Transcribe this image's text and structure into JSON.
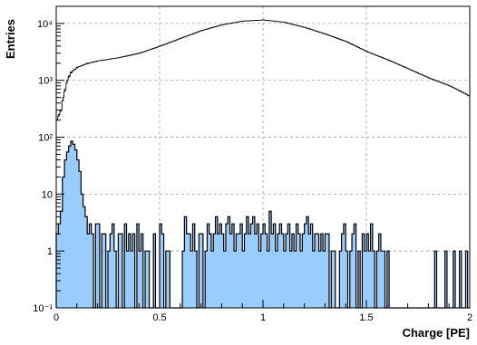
{
  "chart_data": {
    "type": "histogram",
    "xlabel": "Charge [PE]",
    "ylabel": "Entries",
    "xlim": [
      0,
      2
    ],
    "ylim": [
      0.1,
      20000
    ],
    "yscale": "log",
    "grid": true,
    "x_ticks": [
      {
        "value": 0,
        "label": "0"
      },
      {
        "value": 0.5,
        "label": "0.5"
      },
      {
        "value": 1,
        "label": "1"
      },
      {
        "value": 1.5,
        "label": "1.5"
      },
      {
        "value": 2,
        "label": "2"
      }
    ],
    "y_ticks": [
      {
        "value": 0.1,
        "label": "10⁻¹"
      },
      {
        "value": 1,
        "label": "1"
      },
      {
        "value": 10,
        "label": "10"
      },
      {
        "value": 100,
        "label": "10²"
      },
      {
        "value": 1000,
        "label": "10³"
      },
      {
        "value": 10000,
        "label": "10⁴"
      }
    ],
    "bin_width": 0.01,
    "series": [
      {
        "style": "step-outline",
        "color": "#000000",
        "bins": [
          [
            0.0,
            200
          ],
          [
            0.01,
            250
          ],
          [
            0.02,
            300
          ],
          [
            0.03,
            500
          ],
          [
            0.04,
            700
          ],
          [
            0.05,
            1000
          ],
          [
            0.06,
            1200
          ],
          [
            0.07,
            1400
          ],
          [
            0.08,
            1500
          ],
          [
            0.1,
            1700
          ],
          [
            0.15,
            2000
          ],
          [
            0.2,
            2200
          ],
          [
            0.3,
            2500
          ],
          [
            0.4,
            3000
          ],
          [
            0.5,
            4000
          ],
          [
            0.6,
            5500
          ],
          [
            0.7,
            7500
          ],
          [
            0.8,
            9500
          ],
          [
            0.9,
            11000
          ],
          [
            1.0,
            11500
          ],
          [
            1.1,
            10500
          ],
          [
            1.2,
            8500
          ],
          [
            1.3,
            6500
          ],
          [
            1.4,
            4800
          ],
          [
            1.5,
            3200
          ],
          [
            1.6,
            2300
          ],
          [
            1.7,
            1600
          ],
          [
            1.8,
            1100
          ],
          [
            1.9,
            800
          ],
          [
            1.95,
            650
          ],
          [
            2.0,
            520
          ]
        ]
      },
      {
        "style": "filled-step",
        "color": "#99ccff",
        "bins": [
          [
            0.0,
            2
          ],
          [
            0.01,
            3
          ],
          [
            0.02,
            5
          ],
          [
            0.03,
            20
          ],
          [
            0.04,
            40
          ],
          [
            0.05,
            55
          ],
          [
            0.06,
            70
          ],
          [
            0.07,
            85
          ],
          [
            0.08,
            75
          ],
          [
            0.09,
            60
          ],
          [
            0.1,
            40
          ],
          [
            0.11,
            25
          ],
          [
            0.12,
            10
          ],
          [
            0.13,
            6
          ],
          [
            0.14,
            4
          ],
          [
            0.15,
            2
          ],
          [
            0.16,
            3
          ],
          [
            0.17,
            2
          ],
          [
            0.18,
            0.1
          ],
          [
            0.19,
            3
          ],
          [
            0.2,
            3
          ],
          [
            0.21,
            0.1
          ],
          [
            0.22,
            2
          ],
          [
            0.23,
            2
          ],
          [
            0.24,
            0.1
          ],
          [
            0.25,
            1
          ],
          [
            0.26,
            2
          ],
          [
            0.27,
            3
          ],
          [
            0.28,
            1
          ],
          [
            0.29,
            0.1
          ],
          [
            0.3,
            2
          ],
          [
            0.31,
            2
          ],
          [
            0.32,
            0.1
          ],
          [
            0.33,
            3
          ],
          [
            0.34,
            1
          ],
          [
            0.35,
            2
          ],
          [
            0.36,
            1
          ],
          [
            0.37,
            2
          ],
          [
            0.38,
            0.1
          ],
          [
            0.39,
            3
          ],
          [
            0.4,
            1
          ],
          [
            0.41,
            2
          ],
          [
            0.42,
            0.1
          ],
          [
            0.43,
            1
          ],
          [
            0.44,
            1
          ],
          [
            0.45,
            0.1
          ],
          [
            0.46,
            0.1
          ],
          [
            0.47,
            2
          ],
          [
            0.48,
            0.1
          ],
          [
            0.49,
            0.1
          ],
          [
            0.5,
            3
          ],
          [
            0.51,
            2
          ],
          [
            0.52,
            0.1
          ],
          [
            0.53,
            1
          ],
          [
            0.54,
            1
          ],
          [
            0.55,
            0.1
          ],
          [
            0.56,
            0.1
          ],
          [
            0.57,
            0.1
          ],
          [
            0.58,
            0.1
          ],
          [
            0.59,
            0.1
          ],
          [
            0.6,
            0.1
          ],
          [
            0.61,
            1
          ],
          [
            0.62,
            4
          ],
          [
            0.63,
            2
          ],
          [
            0.64,
            2
          ],
          [
            0.65,
            1
          ],
          [
            0.66,
            3
          ],
          [
            0.67,
            1
          ],
          [
            0.68,
            0.1
          ],
          [
            0.69,
            2
          ],
          [
            0.7,
            2
          ],
          [
            0.71,
            0.1
          ],
          [
            0.72,
            1
          ],
          [
            0.73,
            3
          ],
          [
            0.74,
            2
          ],
          [
            0.75,
            1
          ],
          [
            0.76,
            2
          ],
          [
            0.77,
            4
          ],
          [
            0.78,
            2
          ],
          [
            0.79,
            3
          ],
          [
            0.8,
            2
          ],
          [
            0.81,
            1
          ],
          [
            0.82,
            3
          ],
          [
            0.83,
            4
          ],
          [
            0.84,
            2
          ],
          [
            0.85,
            3
          ],
          [
            0.86,
            1
          ],
          [
            0.87,
            2
          ],
          [
            0.88,
            2
          ],
          [
            0.89,
            3
          ],
          [
            0.9,
            1
          ],
          [
            0.91,
            2
          ],
          [
            0.92,
            4
          ],
          [
            0.93,
            2
          ],
          [
            0.94,
            3
          ],
          [
            0.95,
            4
          ],
          [
            0.96,
            2
          ],
          [
            0.97,
            3
          ],
          [
            0.98,
            1
          ],
          [
            0.99,
            2
          ],
          [
            1.0,
            3
          ],
          [
            1.01,
            2
          ],
          [
            1.02,
            1
          ],
          [
            1.03,
            5
          ],
          [
            1.04,
            2
          ],
          [
            1.05,
            3
          ],
          [
            1.06,
            1
          ],
          [
            1.07,
            2
          ],
          [
            1.08,
            3
          ],
          [
            1.09,
            2
          ],
          [
            1.1,
            1
          ],
          [
            1.11,
            2
          ],
          [
            1.12,
            3
          ],
          [
            1.13,
            1
          ],
          [
            1.14,
            2
          ],
          [
            1.15,
            1
          ],
          [
            1.16,
            3
          ],
          [
            1.17,
            2
          ],
          [
            1.18,
            1
          ],
          [
            1.19,
            2
          ],
          [
            1.2,
            3
          ],
          [
            1.21,
            4
          ],
          [
            1.22,
            2
          ],
          [
            1.23,
            3
          ],
          [
            1.24,
            1
          ],
          [
            1.25,
            2
          ],
          [
            1.26,
            2
          ],
          [
            1.27,
            1
          ],
          [
            1.28,
            2
          ],
          [
            1.29,
            1
          ],
          [
            1.3,
            2
          ],
          [
            1.31,
            2
          ],
          [
            1.32,
            0.1
          ],
          [
            1.33,
            1
          ],
          [
            1.34,
            1
          ],
          [
            1.35,
            0.1
          ],
          [
            1.36,
            0.1
          ],
          [
            1.37,
            1
          ],
          [
            1.38,
            2
          ],
          [
            1.39,
            3
          ],
          [
            1.4,
            1
          ],
          [
            1.41,
            0.1
          ],
          [
            1.42,
            1
          ],
          [
            1.43,
            2
          ],
          [
            1.44,
            3
          ],
          [
            1.45,
            0.1
          ],
          [
            1.46,
            1
          ],
          [
            1.47,
            0.1
          ],
          [
            1.48,
            2
          ],
          [
            1.49,
            1
          ],
          [
            1.5,
            2
          ],
          [
            1.51,
            1
          ],
          [
            1.52,
            3
          ],
          [
            1.53,
            1
          ],
          [
            1.54,
            0.1
          ],
          [
            1.55,
            1
          ],
          [
            1.56,
            2
          ],
          [
            1.57,
            1
          ],
          [
            1.58,
            1
          ],
          [
            1.59,
            0.1
          ],
          [
            1.6,
            1
          ],
          [
            1.61,
            0.1
          ],
          [
            1.62,
            0.1
          ],
          [
            1.63,
            0.1
          ],
          [
            1.64,
            0.1
          ],
          [
            1.65,
            0.1
          ],
          [
            1.66,
            0.1
          ],
          [
            1.67,
            0.1
          ],
          [
            1.68,
            0.1
          ],
          [
            1.69,
            0.1
          ],
          [
            1.7,
            0.1
          ],
          [
            1.71,
            0.1
          ],
          [
            1.72,
            0.1
          ],
          [
            1.73,
            0.1
          ],
          [
            1.74,
            0.1
          ],
          [
            1.75,
            0.1
          ],
          [
            1.76,
            0.1
          ],
          [
            1.77,
            0.1
          ],
          [
            1.78,
            0.1
          ],
          [
            1.79,
            0.1
          ],
          [
            1.8,
            0.1
          ],
          [
            1.81,
            0.1
          ],
          [
            1.82,
            0.1
          ],
          [
            1.83,
            1
          ],
          [
            1.84,
            0.1
          ],
          [
            1.85,
            0.1
          ],
          [
            1.86,
            0.1
          ],
          [
            1.87,
            0.1
          ],
          [
            1.88,
            1
          ],
          [
            1.89,
            0.1
          ],
          [
            1.9,
            0.1
          ],
          [
            1.91,
            0.1
          ],
          [
            1.92,
            1
          ],
          [
            1.93,
            0.1
          ],
          [
            1.94,
            0.1
          ],
          [
            1.95,
            1
          ],
          [
            1.96,
            0.1
          ],
          [
            1.97,
            0.1
          ],
          [
            1.98,
            1
          ],
          [
            1.99,
            0.1
          ]
        ]
      }
    ]
  }
}
